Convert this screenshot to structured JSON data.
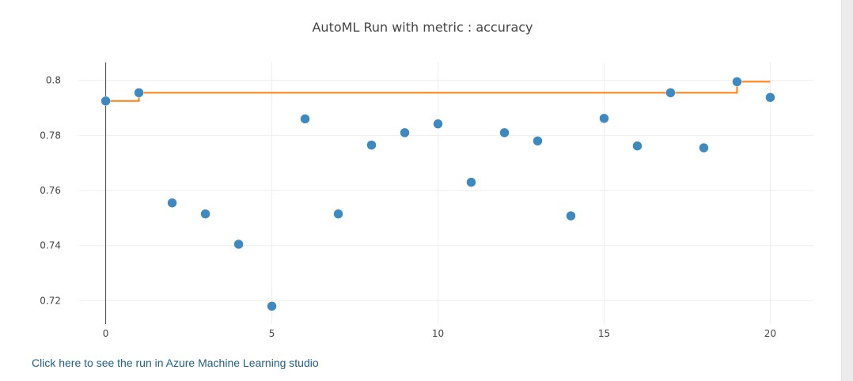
{
  "chart_data": {
    "type": "scatter",
    "title": "AutoML Run with metric : accuracy",
    "xlabel": "",
    "ylabel": "",
    "xlim": [
      -0.8,
      21.3
    ],
    "ylim": [
      0.7115,
      0.8065
    ],
    "x_ticks": [
      0,
      5,
      10,
      15,
      20
    ],
    "y_ticks": [
      0.72,
      0.74,
      0.76,
      0.78,
      0.8
    ],
    "grid": true,
    "series": [
      {
        "type": "scatter",
        "color": "#3d89c0",
        "x": [
          0,
          1,
          2,
          3,
          4,
          5,
          6,
          7,
          8,
          9,
          10,
          11,
          12,
          13,
          14,
          15,
          16,
          17,
          18,
          19,
          20
        ],
        "values": [
          0.7925,
          0.7955,
          0.7555,
          0.7515,
          0.7405,
          0.718,
          0.786,
          0.7515,
          0.7765,
          0.781,
          0.7842,
          0.763,
          0.781,
          0.778,
          0.7508,
          0.7862,
          0.7762,
          0.7955,
          0.7755,
          0.7995,
          0.7938
        ]
      },
      {
        "type": "line-step",
        "color": "#ff7f0e",
        "x": [
          0,
          1,
          2,
          3,
          4,
          5,
          6,
          7,
          8,
          9,
          10,
          11,
          12,
          13,
          14,
          15,
          16,
          17,
          18,
          19,
          20
        ],
        "values": [
          0.7925,
          0.7955,
          0.7955,
          0.7955,
          0.7955,
          0.7955,
          0.7955,
          0.7955,
          0.7955,
          0.7955,
          0.7955,
          0.7955,
          0.7955,
          0.7955,
          0.7955,
          0.7955,
          0.7955,
          0.7955,
          0.7955,
          0.7995,
          0.7995
        ]
      }
    ]
  },
  "footer": {
    "link_text": "Click here to see the run in Azure Machine Learning studio"
  },
  "colors": {
    "scatter": "#3d89c0",
    "best_line": "#ff7f0e",
    "grid": "#eeeeee",
    "link": "#1f5f8b"
  }
}
